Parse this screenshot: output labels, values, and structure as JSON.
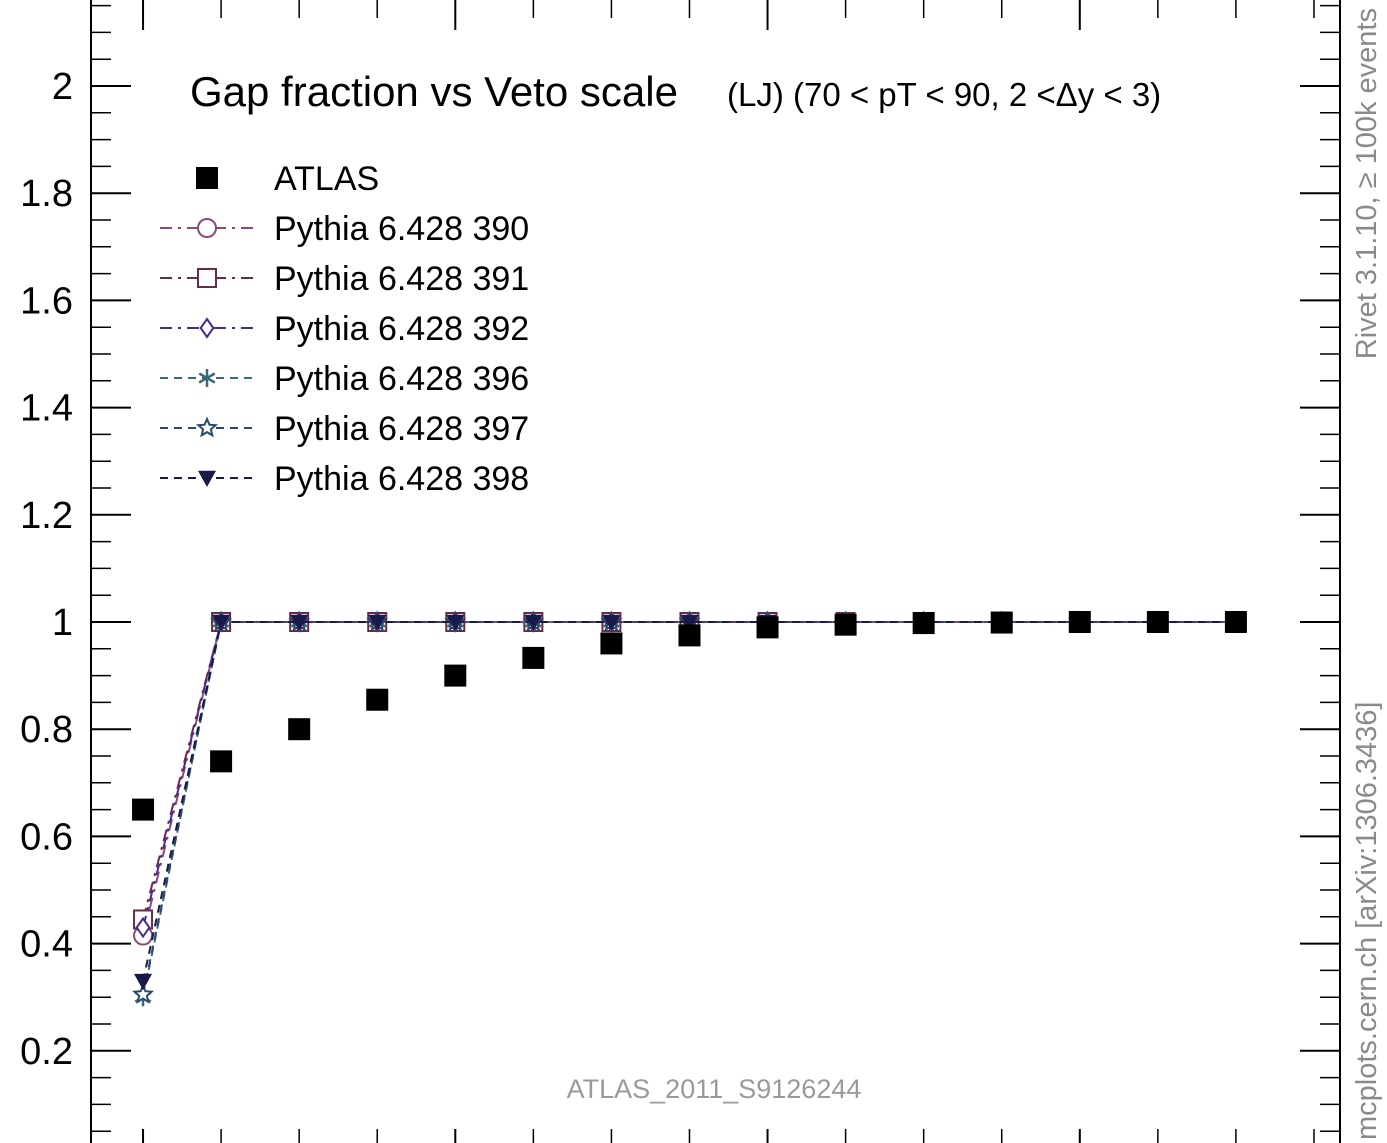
{
  "chart_data": {
    "type": "scatter",
    "title": "Gap fraction vs Veto scale",
    "subtitle": "(LJ) (70 < pT <  90, 2 <Δy < 3)",
    "xlabel": "",
    "ylabel": "",
    "ylim": [
      0.0,
      2.15
    ],
    "xlim": [
      15.0,
      135.0
    ],
    "y_ticks": [
      0.2,
      0.4,
      0.6,
      0.8,
      1,
      1.2,
      1.4,
      1.6,
      1.8,
      2
    ],
    "y_tick_labels": [
      "0.2",
      "0.4",
      "0.6",
      "0.8",
      "1",
      "1.2",
      "1.4",
      "1.6",
      "1.8",
      "2"
    ],
    "y_minor_step": 0.05,
    "x_major_ticks": [
      20,
      50,
      80,
      110
    ],
    "x_minor_step": 7.5,
    "x": [
      20,
      27.5,
      35,
      42.5,
      50,
      57.5,
      65,
      72.5,
      80,
      87.5,
      95,
      102.5,
      110,
      117.5,
      125
    ],
    "legend_position": "top-left",
    "grid": false,
    "series": [
      {
        "name": "ATLAS",
        "style": "data",
        "marker": "filled-square",
        "color": "#000000",
        "values": [
          0.65,
          0.74,
          0.8,
          0.855,
          0.9,
          0.933,
          0.96,
          0.975,
          0.99,
          0.995,
          0.998,
          0.999,
          1.0,
          1.0,
          1.0
        ]
      },
      {
        "name": "Pythia 6.428 390",
        "marker": "open-circle",
        "dash": "12,6,3,6",
        "color": "#8c4a78",
        "values": [
          0.415,
          1,
          1,
          1,
          1,
          1,
          1,
          1,
          1,
          1,
          1,
          1,
          1,
          1,
          1
        ]
      },
      {
        "name": "Pythia 6.428 391",
        "marker": "open-square",
        "dash": "12,6,3,6",
        "color": "#6a2a4a",
        "values": [
          0.445,
          1,
          1,
          1,
          1,
          1,
          1,
          1,
          1,
          1,
          1,
          1,
          1,
          1,
          1
        ]
      },
      {
        "name": "Pythia 6.428 392",
        "marker": "open-diamond",
        "dash": "12,6,3,6",
        "color": "#4a2a8a",
        "values": [
          0.43,
          1,
          1,
          1,
          1,
          1,
          1,
          1,
          1,
          1,
          1,
          1,
          1,
          1,
          1
        ]
      },
      {
        "name": "Pythia 6.428 396",
        "marker": "asterisk",
        "dash": "8,6",
        "color": "#3a6a78",
        "values": [
          0.3,
          1,
          1,
          1,
          1,
          1,
          1,
          1,
          1,
          1,
          1,
          1,
          1,
          1,
          1
        ]
      },
      {
        "name": "Pythia 6.428 397",
        "marker": "open-star",
        "dash": "8,6",
        "color": "#2a4a6a",
        "values": [
          0.305,
          1,
          1,
          1,
          1,
          1,
          1,
          1,
          1,
          1,
          1,
          1,
          1,
          1,
          1
        ]
      },
      {
        "name": "Pythia 6.428 398",
        "marker": "filled-triangle-down",
        "dash": "8,6",
        "color": "#1a1a4a",
        "values": [
          0.33,
          1,
          1,
          1,
          1,
          1,
          1,
          1,
          1,
          1,
          1,
          1,
          1,
          1,
          1
        ]
      }
    ],
    "annotations": {
      "analysis_id": "ATLAS_2011_S9126244",
      "rivet_info": "Rivet 3.1.10, ≥ 100k events",
      "mcplots_info": "mcplots.cern.ch [arXiv:1306.3436]"
    }
  }
}
